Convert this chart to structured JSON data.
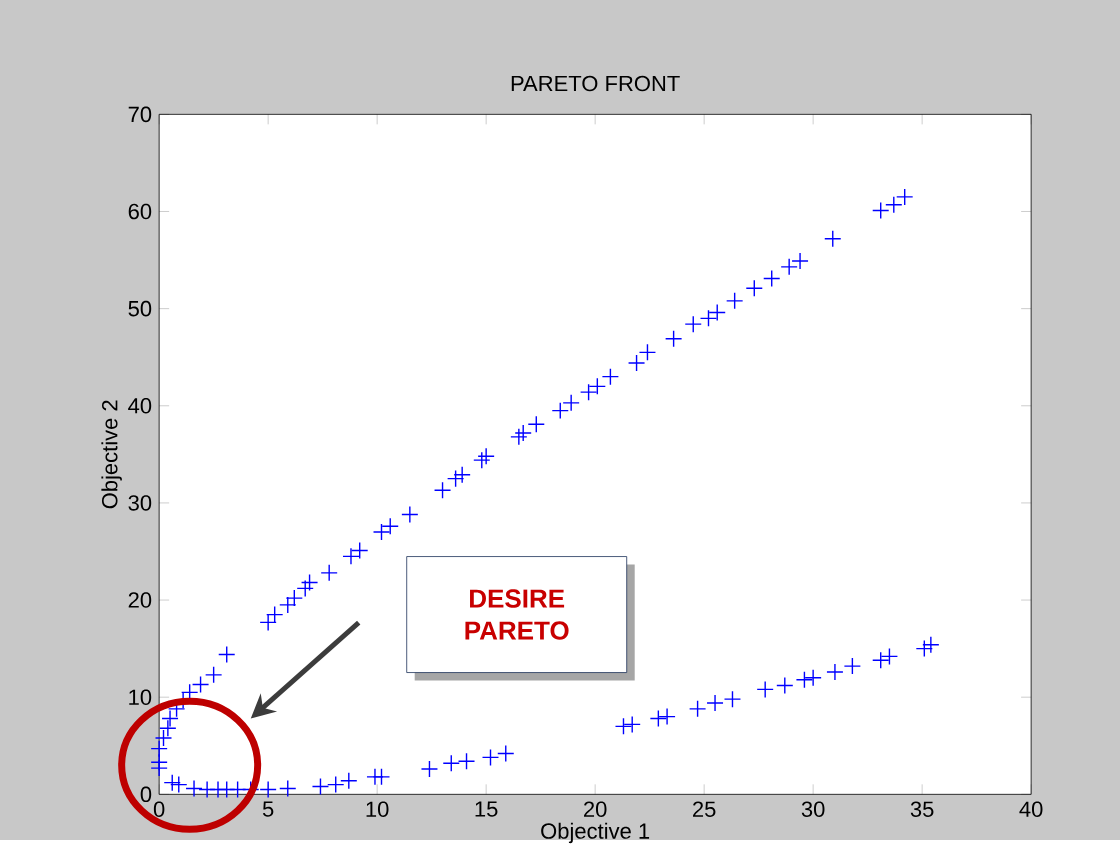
{
  "chart_data": {
    "type": "scatter",
    "title": "PARETO FRONT",
    "xlabel": "Objective 1",
    "ylabel": "Objective 2",
    "xlim": [
      0,
      40
    ],
    "xticks": [
      0,
      5,
      10,
      15,
      20,
      25,
      30,
      35,
      40
    ],
    "ylim": [
      0,
      70
    ],
    "yticks": [
      0,
      10,
      20,
      30,
      40,
      50,
      60,
      70
    ],
    "marker": "cross",
    "grid": false,
    "annotations": [
      "DESIRE PARETO"
    ],
    "series": [
      {
        "color": "#0000ff",
        "x": [
          0.0,
          0.0,
          0.0,
          0.2,
          0.4,
          0.5,
          0.8,
          1.1,
          1.4,
          1.9,
          2.5,
          3.1,
          5.0,
          5.3,
          5.9,
          6.2,
          6.7,
          6.9,
          7.8,
          8.8,
          9.2,
          10.2,
          10.6,
          11.5,
          13.0,
          13.6,
          13.9,
          14.8,
          15.0,
          16.5,
          16.7,
          17.3,
          18.4,
          18.9,
          19.7,
          20.1,
          20.7,
          21.9,
          22.4,
          23.6,
          24.5,
          25.2,
          25.6,
          26.4,
          27.3,
          28.1,
          28.9,
          29.4,
          30.9,
          33.1,
          33.7,
          34.2,
          0.6,
          0.9,
          1.6,
          2.2,
          2.7,
          3.1,
          3.6,
          4.2,
          5.0,
          5.9,
          7.4,
          8.1,
          8.7,
          9.9,
          10.2,
          12.4,
          13.4,
          14.1,
          15.2,
          15.9,
          21.3,
          21.7,
          22.9,
          23.3,
          24.7,
          25.5,
          26.3,
          27.8,
          28.7,
          29.6,
          30.0,
          31.0,
          31.8,
          33.1,
          33.5,
          35.1,
          35.4
        ],
        "values": [
          2.7,
          3.3,
          4.7,
          5.8,
          6.8,
          7.8,
          8.8,
          9.7,
          10.5,
          11.3,
          12.3,
          14.4,
          17.7,
          18.5,
          19.5,
          20.2,
          21.2,
          21.8,
          22.8,
          24.5,
          25.1,
          27.0,
          27.6,
          28.8,
          31.3,
          32.5,
          32.9,
          34.4,
          34.8,
          36.8,
          37.2,
          38.1,
          39.5,
          40.3,
          41.4,
          42.0,
          43.0,
          44.4,
          45.5,
          46.9,
          48.4,
          49.0,
          49.6,
          50.8,
          52.1,
          53.1,
          54.3,
          54.9,
          57.2,
          60.1,
          60.7,
          61.5,
          1.2,
          1.0,
          0.6,
          0.5,
          0.5,
          0.5,
          0.5,
          0.5,
          0.5,
          0.6,
          0.8,
          1.0,
          1.4,
          1.8,
          1.8,
          2.6,
          3.2,
          3.4,
          3.8,
          4.2,
          7.0,
          7.2,
          7.8,
          8.0,
          8.8,
          9.4,
          9.8,
          10.8,
          11.2,
          11.8,
          12.0,
          12.6,
          13.2,
          13.8,
          14.2,
          15.0,
          15.4
        ]
      }
    ]
  }
}
